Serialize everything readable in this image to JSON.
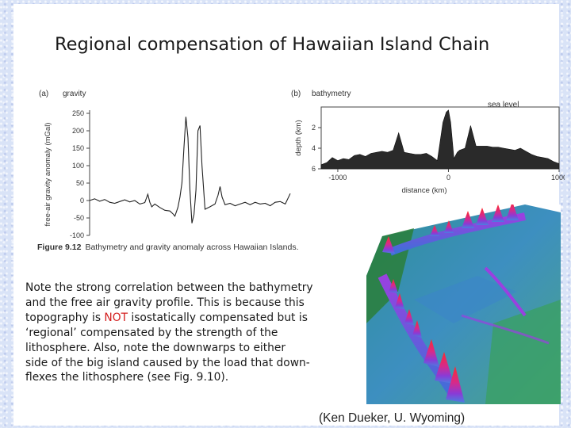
{
  "title": "Regional compensation of Hawaiian Island Chain",
  "figure": {
    "panel_a_label": "(a)",
    "panel_a_title": "gravity",
    "panel_b_label": "(b)",
    "panel_b_title": "bathymetry",
    "sea_level_label": "sea level",
    "caption_number": "Figure 9.12",
    "caption_text": "Bathymetry and gravity anomaly across Hawaiian Islands.",
    "colors": {
      "red_text": "#d42020",
      "chart_line": "#222222"
    }
  },
  "body": {
    "lines": [
      [
        "Note the strong correlation between the bathymetry",
        ""
      ],
      [
        "and the free air gravity profile.  This is because this",
        ""
      ],
      [
        "topography is ",
        "NOT",
        " isostatically compensated but is"
      ],
      [
        "‘regional’ compensated by the strength of the",
        ""
      ],
      [
        "lithosphere.  Also, note the downwarps to either",
        ""
      ],
      [
        "side of the big island caused by the load that down-",
        ""
      ],
      [
        "flexes the lithosphere (see Fig. 9.10).",
        ""
      ]
    ]
  },
  "credit": "(Ken Dueker, U. Wyoming)",
  "image": {
    "kind": "3D shaded-relief map of Hawaiian Island Chain bathymetry"
  },
  "chart_data": [
    {
      "type": "line",
      "title": "gravity",
      "xlabel": "",
      "ylabel": "free-air gravity anomaly (mGal)",
      "yticks": [
        250,
        200,
        150,
        100,
        50,
        0,
        -50,
        -100
      ],
      "ylim": [
        -100,
        250
      ],
      "xlim": [
        -1000,
        1000
      ],
      "grid": false,
      "series": [
        {
          "x": [
            -1000,
            -950,
            -900,
            -850,
            -800,
            -750,
            -700,
            -650,
            -600,
            -550,
            -500,
            -450,
            -420,
            -400,
            -380,
            -350,
            -300,
            -250,
            -200,
            -170,
            -150,
            -120,
            -100,
            -80,
            -60,
            -40,
            -20,
            0,
            20,
            40,
            60,
            80,
            100,
            120,
            150,
            200,
            250,
            280,
            300,
            320,
            350,
            400,
            450,
            500,
            550,
            600,
            650,
            700,
            750,
            800,
            850,
            900,
            950,
            1000
          ],
          "y": [
            0,
            5,
            -2,
            3,
            -5,
            -8,
            -3,
            2,
            -4,
            0,
            -10,
            -6,
            18,
            -5,
            -18,
            -10,
            -20,
            -28,
            -30,
            -38,
            -45,
            -20,
            10,
            50,
            150,
            240,
            180,
            30,
            -65,
            -40,
            30,
            200,
            215,
            100,
            -25,
            -18,
            -10,
            15,
            40,
            10,
            -12,
            -8,
            -15,
            -10,
            -5,
            -12,
            -5,
            -10,
            -8,
            -15,
            -5,
            -3,
            -10,
            20
          ]
        }
      ]
    },
    {
      "type": "area",
      "title": "bathymetry",
      "xlabel": "distance (km)",
      "ylabel": "depth (km)",
      "xticks": [
        -1000,
        0,
        1000
      ],
      "yticks": [
        2,
        4,
        6
      ],
      "xlim": [
        -1150,
        1000
      ],
      "ylim": [
        6,
        0
      ],
      "grid": false,
      "series": [
        {
          "x": [
            -1150,
            -1100,
            -1050,
            -1000,
            -950,
            -900,
            -850,
            -800,
            -750,
            -700,
            -650,
            -600,
            -550,
            -500,
            -450,
            -400,
            -350,
            -300,
            -250,
            -200,
            -150,
            -100,
            -50,
            -20,
            0,
            20,
            50,
            80,
            100,
            150,
            200,
            250,
            300,
            350,
            400,
            450,
            500,
            550,
            600,
            650,
            700,
            750,
            800,
            850,
            900,
            950,
            1000
          ],
          "y": [
            5.6,
            5.4,
            4.9,
            5.2,
            5.0,
            5.1,
            4.7,
            4.6,
            4.8,
            4.5,
            4.4,
            4.3,
            4.4,
            4.2,
            2.5,
            4.4,
            4.5,
            4.6,
            4.6,
            4.5,
            4.8,
            5.2,
            1.5,
            0.5,
            0.3,
            1.5,
            5.0,
            4.4,
            4.2,
            4.0,
            1.8,
            3.8,
            3.8,
            3.8,
            3.9,
            3.9,
            4.0,
            4.1,
            4.2,
            4.0,
            4.3,
            4.6,
            4.8,
            4.9,
            5.0,
            5.3,
            5.5
          ]
        }
      ]
    }
  ]
}
